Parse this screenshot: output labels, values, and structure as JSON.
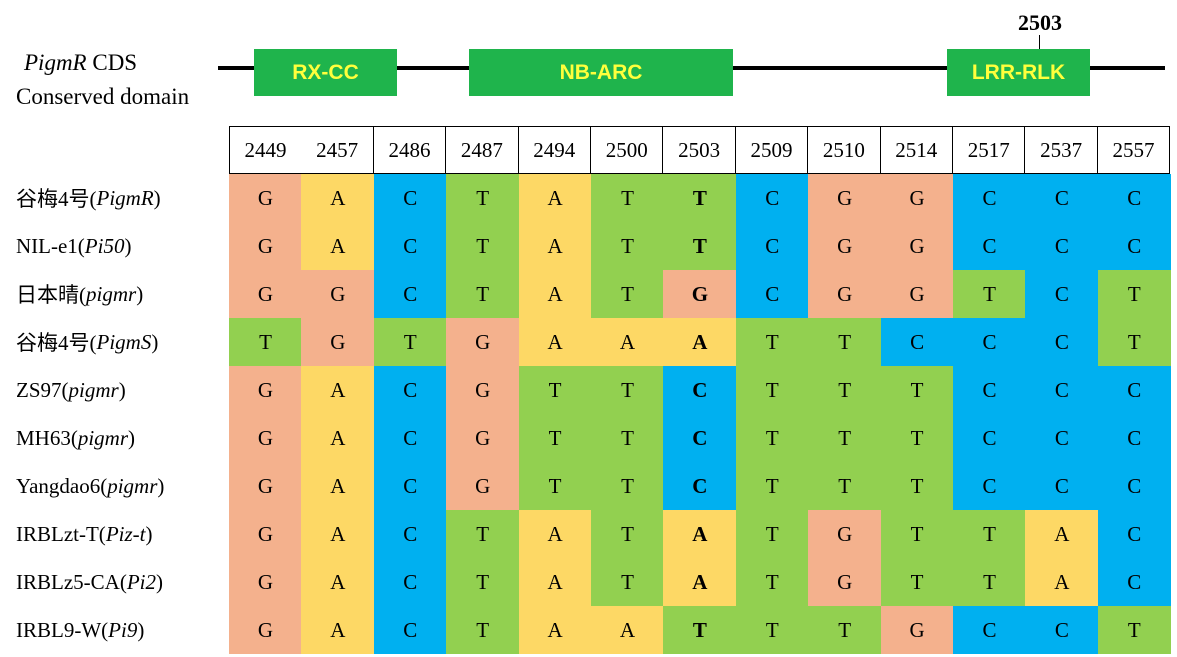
{
  "diagram": {
    "gene_name": "PigmR",
    "gene_suffix": " CDS",
    "conserved_label": "Conserved domain",
    "domains": [
      "RX-CC",
      "NB-ARC",
      "LRR-RLK"
    ],
    "site_label": "2503"
  },
  "alignment": {
    "positions": [
      "2449",
      "2457",
      "2486",
      "2487",
      "2494",
      "2500",
      "2503",
      "2509",
      "2510",
      "2514",
      "2517",
      "2537",
      "2557"
    ],
    "highlight_position": "2503",
    "base_colors": {
      "A": "#fdd865",
      "T": "#92d050",
      "G": "#f4b18d",
      "C": "#00b0f0"
    },
    "rows": [
      {
        "name": "谷梅4号",
        "allele": "PigmR",
        "bases": [
          "G",
          "A",
          "C",
          "T",
          "A",
          "T",
          "T",
          "C",
          "G",
          "G",
          "C",
          "C",
          "C"
        ]
      },
      {
        "name": "NIL-e1",
        "allele": "Pi50",
        "bases": [
          "G",
          "A",
          "C",
          "T",
          "A",
          "T",
          "T",
          "C",
          "G",
          "G",
          "C",
          "C",
          "C"
        ]
      },
      {
        "name": "日本晴",
        "allele": "pigmr",
        "bases": [
          "G",
          "G",
          "C",
          "T",
          "A",
          "T",
          "G",
          "C",
          "G",
          "G",
          "T",
          "C",
          "T"
        ]
      },
      {
        "name": "谷梅4号",
        "allele": "PigmS",
        "bases": [
          "T",
          "G",
          "T",
          "G",
          "A",
          "A",
          "A",
          "T",
          "T",
          "C",
          "C",
          "C",
          "T"
        ]
      },
      {
        "name": "ZS97",
        "allele": "pigmr",
        "bases": [
          "G",
          "A",
          "C",
          "G",
          "T",
          "T",
          "C",
          "T",
          "T",
          "T",
          "C",
          "C",
          "C"
        ]
      },
      {
        "name": "MH63",
        "allele": "pigmr",
        "bases": [
          "G",
          "A",
          "C",
          "G",
          "T",
          "T",
          "C",
          "T",
          "T",
          "T",
          "C",
          "C",
          "C"
        ]
      },
      {
        "name": "Yangdao6",
        "allele": "pigmr",
        "bases": [
          "G",
          "A",
          "C",
          "G",
          "T",
          "T",
          "C",
          "T",
          "T",
          "T",
          "C",
          "C",
          "C"
        ]
      },
      {
        "name": "IRBLzt-T",
        "allele": "Piz-t",
        "bases": [
          "G",
          "A",
          "C",
          "T",
          "A",
          "T",
          "A",
          "T",
          "G",
          "T",
          "T",
          "A",
          "C"
        ]
      },
      {
        "name": "IRBLz5-CA",
        "allele": "Pi2",
        "bases": [
          "G",
          "A",
          "C",
          "T",
          "A",
          "T",
          "A",
          "T",
          "G",
          "T",
          "T",
          "A",
          "C"
        ]
      },
      {
        "name": "IRBL9-W",
        "allele": "Pi9",
        "bases": [
          "G",
          "A",
          "C",
          "T",
          "A",
          "A",
          "T",
          "T",
          "T",
          "G",
          "C",
          "C",
          "T"
        ]
      }
    ]
  }
}
